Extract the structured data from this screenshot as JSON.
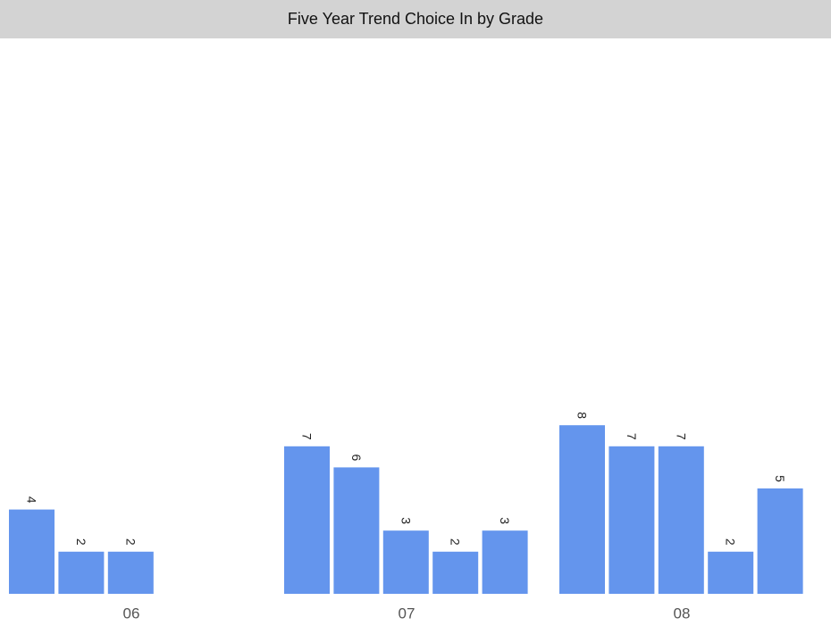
{
  "header": {
    "title": "Five Year Trend Choice In by Grade"
  },
  "chart_data": {
    "type": "bar",
    "title": "Five Year Trend Choice In by Grade",
    "xlabel": "",
    "ylabel": "",
    "ylim": [
      0,
      24
    ],
    "grid": false,
    "legend": "none",
    "bar_color": "#6495ed",
    "groups": [
      {
        "label": "06",
        "values": [
          4,
          2,
          2
        ]
      },
      {
        "label": "07",
        "values": [
          7,
          6,
          3,
          2,
          3
        ]
      },
      {
        "label": "08",
        "values": [
          8,
          7,
          7,
          2,
          5
        ]
      }
    ]
  }
}
